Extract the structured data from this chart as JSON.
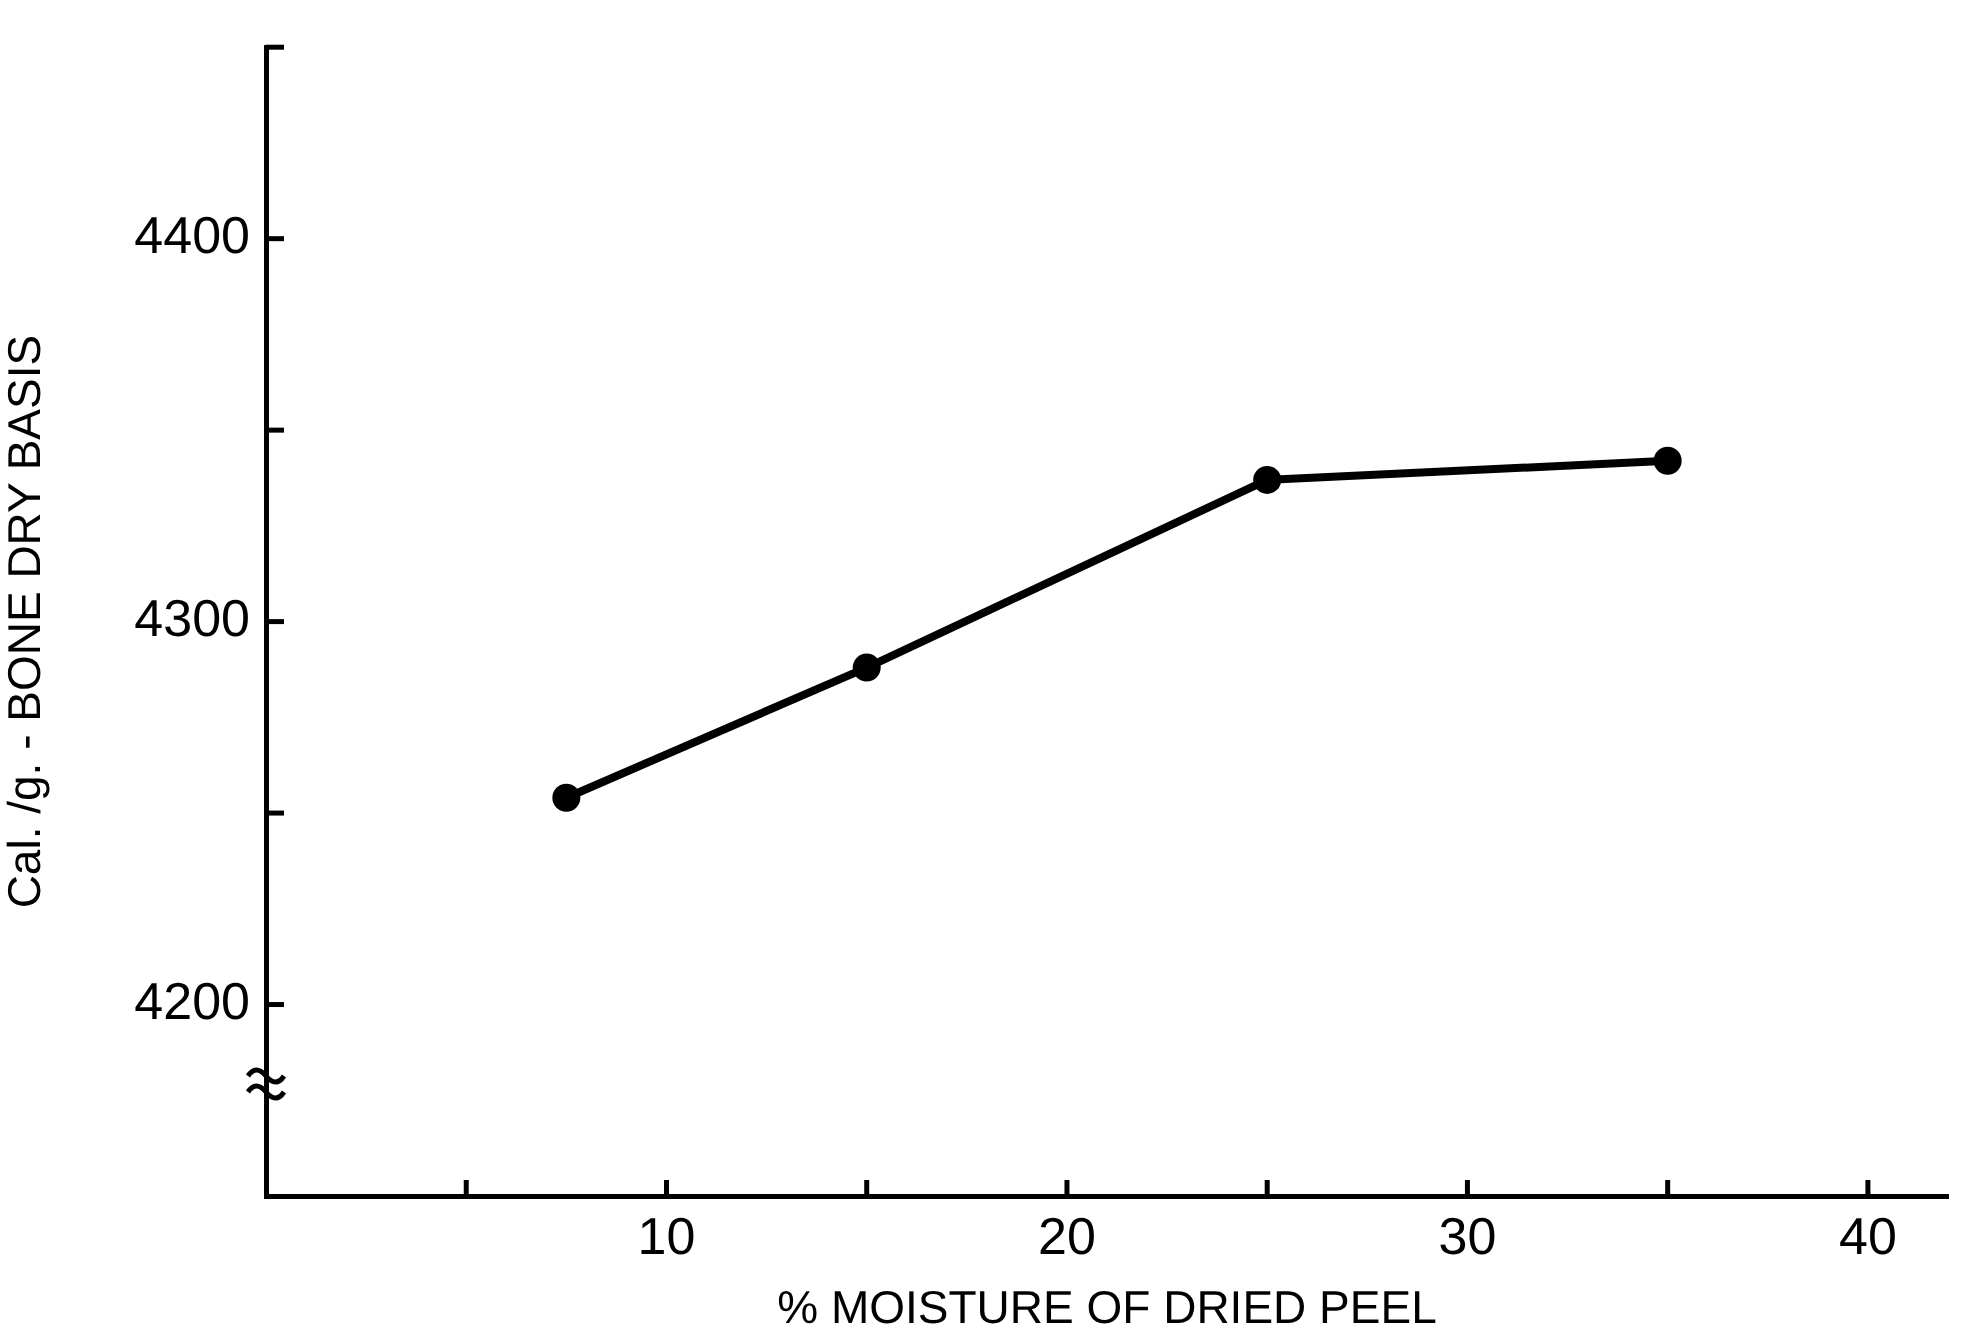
{
  "chart_data": {
    "type": "line",
    "xlabel": "% MOISTURE OF DRIED PEEL",
    "ylabel": "Cal. /g. - BONE DRY BASIS",
    "x": [
      7.5,
      15,
      25,
      35
    ],
    "series": [
      {
        "color": "#000000",
        "values": [
          4254,
          4288,
          4337,
          4342
        ]
      }
    ],
    "xlim": [
      0,
      42
    ],
    "xticks": [
      {
        "value": 5,
        "label": null
      },
      10,
      {
        "value": 15,
        "label": null
      },
      20,
      {
        "value": 25,
        "label": null
      },
      30,
      {
        "value": 35,
        "label": null
      },
      40
    ],
    "ylim": [
      4150,
      4450
    ],
    "yticks": [
      4200,
      {
        "value": 4250,
        "label": null
      },
      4300,
      {
        "value": 4350,
        "label": null
      },
      4400,
      {
        "value": 4450,
        "label": null
      }
    ],
    "grid": false,
    "legend": false,
    "marker": "circle",
    "line_style": "solid"
  }
}
